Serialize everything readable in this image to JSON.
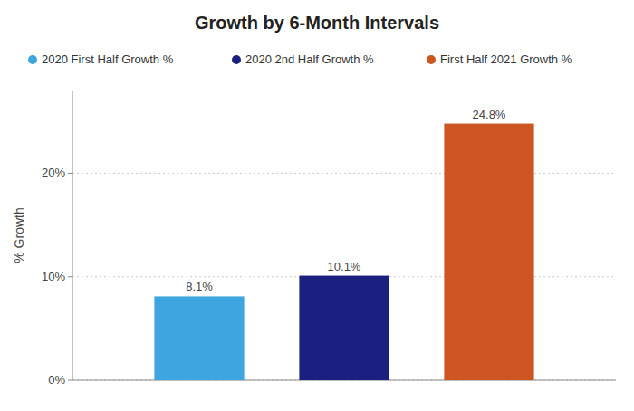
{
  "chart_data": {
    "type": "bar",
    "title": "Growth by 6-Month Intervals",
    "y_label": "% Growth",
    "categories": [
      null
    ],
    "series": [
      {
        "name": "2020 First Half Growth %",
        "color": "#3DA5E0",
        "values": [
          8.1
        ],
        "value_labels": [
          "8.1%"
        ]
      },
      {
        "name": "2020 2nd Half Growth %",
        "color": "#1B2080",
        "values": [
          10.1
        ],
        "value_labels": [
          "10.1%"
        ]
      },
      {
        "name": "First Half 2021 Growth %",
        "color": "#CC5522",
        "values": [
          24.8
        ],
        "value_labels": [
          "24.8%"
        ]
      }
    ],
    "ylim": [
      0,
      28
    ],
    "yticks": [
      {
        "value": 0,
        "label": "0%"
      },
      {
        "value": 10,
        "label": "10%"
      },
      {
        "value": 20,
        "label": "20%"
      }
    ],
    "grid": true,
    "data_labels": true,
    "tick_labels": "y"
  }
}
